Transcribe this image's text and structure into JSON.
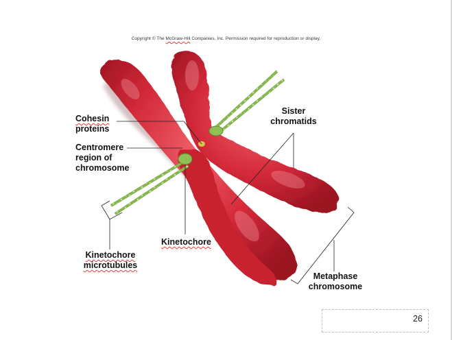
{
  "copyright": {
    "prefix": "Copyright © The ",
    "brand": "McGraw-Hill",
    "suffix": " Companies, Inc. Permission required for reproduction or display."
  },
  "labels": {
    "cohesin_line1": "Cohesin",
    "cohesin_line2": "proteins",
    "centromere_line1": "Centromere",
    "centromere_line2": "region of",
    "centromere_line3": "chromosome",
    "sister_line1": "Sister",
    "sister_line2": "chromatids",
    "kinetochore": "Kinetochore",
    "kt_micro_line1": "Kinetochore",
    "kt_micro_line2": "microtubules",
    "metaphase_line1": "Metaphase",
    "metaphase_line2": "chromosome"
  },
  "page_number": "26",
  "colors": {
    "chromatid": "#d42a3a",
    "chromatid_dark": "#a11626",
    "kinetochore": "#8fbf55",
    "microtubule": "#7fb04a",
    "cohesin": "#d9c44a"
  }
}
